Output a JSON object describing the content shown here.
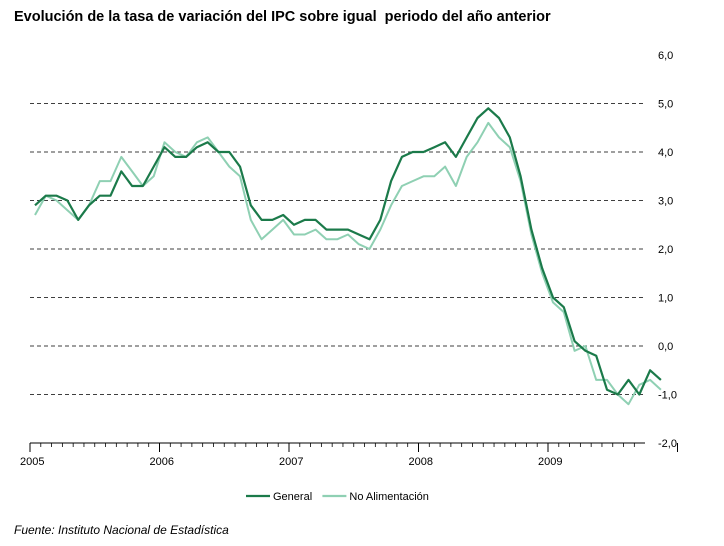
{
  "title": "Evolución de la tasa de variación del IPC sobre igual  periodo del año anterior",
  "source": "Fuente: Instituto Nacional de Estadística",
  "chart_data": {
    "type": "line",
    "x_start": "2005-01",
    "x_end": "2009-09",
    "x_ticks": [
      "2005",
      "2006",
      "2007",
      "2008",
      "2009"
    ],
    "ylim": [
      -2.0,
      6.0
    ],
    "y_ticks": [
      "6,0",
      "5,0",
      "4,0",
      "3,0",
      "2,0",
      "1,0",
      "0,0",
      "-1,0",
      "-2,0"
    ],
    "y_axis_side": "right",
    "grid": "horizontal dashed",
    "legend_position": "bottom",
    "colors": {
      "General": "#1b7a4a",
      "No Alimentación": "#8fd0b3"
    },
    "series": [
      {
        "name": "General",
        "values": [
          2.9,
          3.1,
          3.1,
          3.0,
          2.6,
          2.9,
          3.1,
          3.1,
          3.6,
          3.3,
          3.3,
          3.7,
          4.1,
          3.9,
          3.9,
          4.1,
          4.2,
          4.0,
          4.0,
          3.7,
          2.9,
          2.6,
          2.6,
          2.7,
          2.5,
          2.6,
          2.6,
          2.4,
          2.4,
          2.4,
          2.3,
          2.2,
          2.6,
          3.4,
          3.9,
          4.0,
          4.0,
          4.1,
          4.2,
          3.9,
          4.3,
          4.7,
          4.9,
          4.7,
          4.3,
          3.5,
          2.4,
          1.6,
          1.0,
          0.8,
          0.1,
          -0.1,
          -0.2,
          -0.9,
          -1.0,
          -0.7,
          -1.0,
          -0.5,
          -0.7
        ]
      },
      {
        "name": "No Alimentación",
        "values": [
          2.7,
          3.1,
          3.0,
          2.8,
          2.6,
          2.9,
          3.4,
          3.4,
          3.9,
          3.6,
          3.3,
          3.5,
          4.2,
          4.0,
          3.9,
          4.2,
          4.3,
          4.0,
          3.7,
          3.5,
          2.6,
          2.2,
          2.4,
          2.6,
          2.3,
          2.3,
          2.4,
          2.2,
          2.2,
          2.3,
          2.1,
          2.0,
          2.4,
          2.9,
          3.3,
          3.4,
          3.5,
          3.5,
          3.7,
          3.3,
          3.9,
          4.2,
          4.6,
          4.3,
          4.1,
          3.4,
          2.3,
          1.5,
          0.9,
          0.7,
          -0.1,
          0.0,
          -0.7,
          -0.7,
          -1.0,
          -1.2,
          -0.8,
          -0.7,
          -0.9
        ]
      }
    ]
  }
}
